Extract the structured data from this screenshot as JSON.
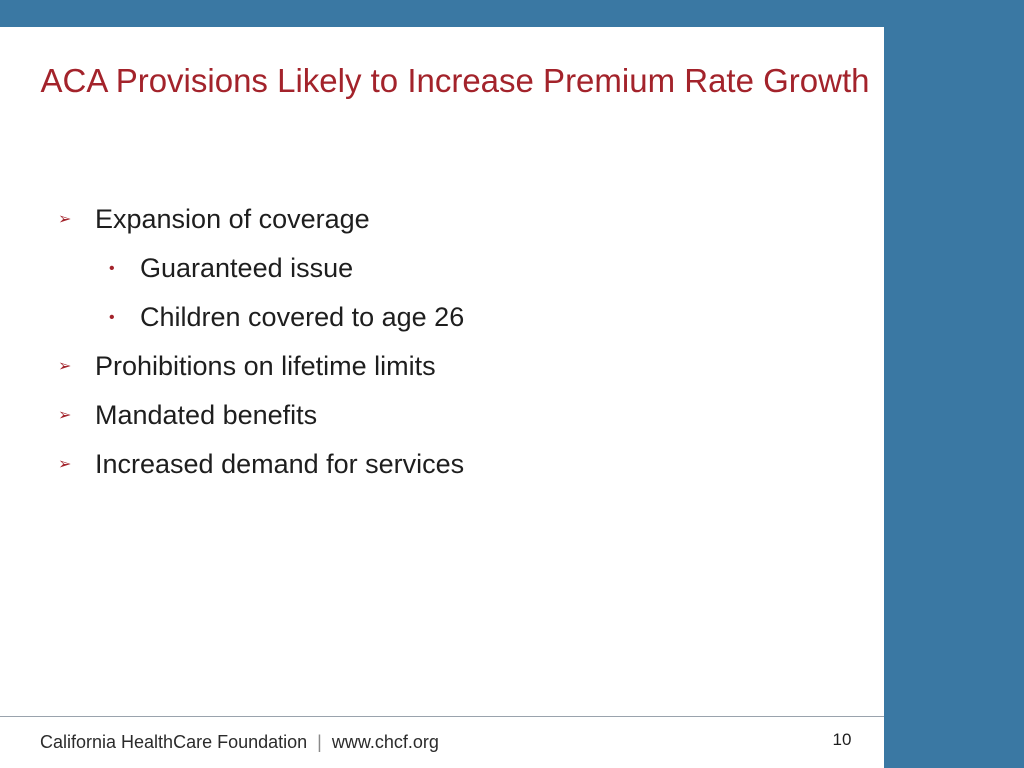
{
  "slide": {
    "title": "ACA Provisions Likely to Increase Premium Rate Growth",
    "bullets": [
      {
        "level": 1,
        "marker": "➢",
        "text": "Expansion of coverage"
      },
      {
        "level": 2,
        "marker": "•",
        "text": "Guaranteed issue"
      },
      {
        "level": 2,
        "marker": "•",
        "text": "Children covered to age 26"
      },
      {
        "level": 1,
        "marker": "➢",
        "text": "Prohibitions on lifetime limits"
      },
      {
        "level": 1,
        "marker": "➢",
        "text": "Mandated benefits"
      },
      {
        "level": 1,
        "marker": "➢",
        "text": "Increased demand for services"
      }
    ]
  },
  "footer": {
    "organization": "California HealthCare Foundation",
    "separator": "|",
    "website": "www.chcf.org",
    "page_number": "10"
  },
  "colors": {
    "accent_band": "#3a78a3",
    "title": "#a3232b",
    "body_text": "#1e1e1e"
  }
}
